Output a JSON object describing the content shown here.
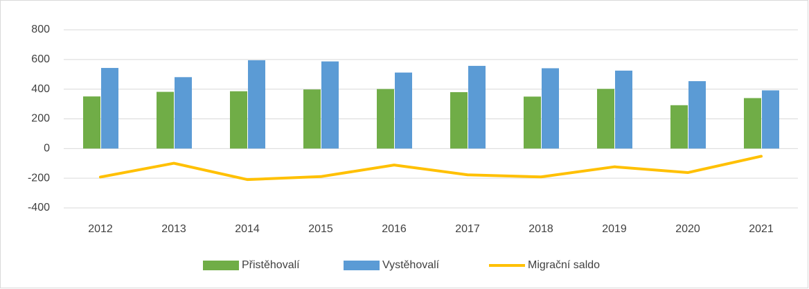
{
  "chart_data": {
    "type": "bar",
    "categories": [
      "2012",
      "2013",
      "2014",
      "2015",
      "2016",
      "2017",
      "2018",
      "2019",
      "2020",
      "2021"
    ],
    "series": [
      {
        "name": "Přistěhovalí",
        "color": "#70ad47",
        "values": [
          351,
          382,
          386,
          398,
          401,
          380,
          350,
          402,
          292,
          340
        ]
      },
      {
        "name": "Vystěhovalí",
        "color": "#5b9bd5",
        "values": [
          543,
          481,
          595,
          587,
          512,
          557,
          541,
          525,
          454,
          392
        ]
      },
      {
        "name": "Migrační saldo",
        "color": "#ffc000",
        "type": "line",
        "values": [
          -192,
          -99,
          -209,
          -189,
          -111,
          -177,
          -191,
          -123,
          -162,
          -52
        ]
      }
    ],
    "ylim": [
      -400,
      800
    ],
    "yticks": [
      -400,
      -200,
      0,
      200,
      400,
      600,
      800
    ],
    "grid": true,
    "legend": "bottom"
  }
}
